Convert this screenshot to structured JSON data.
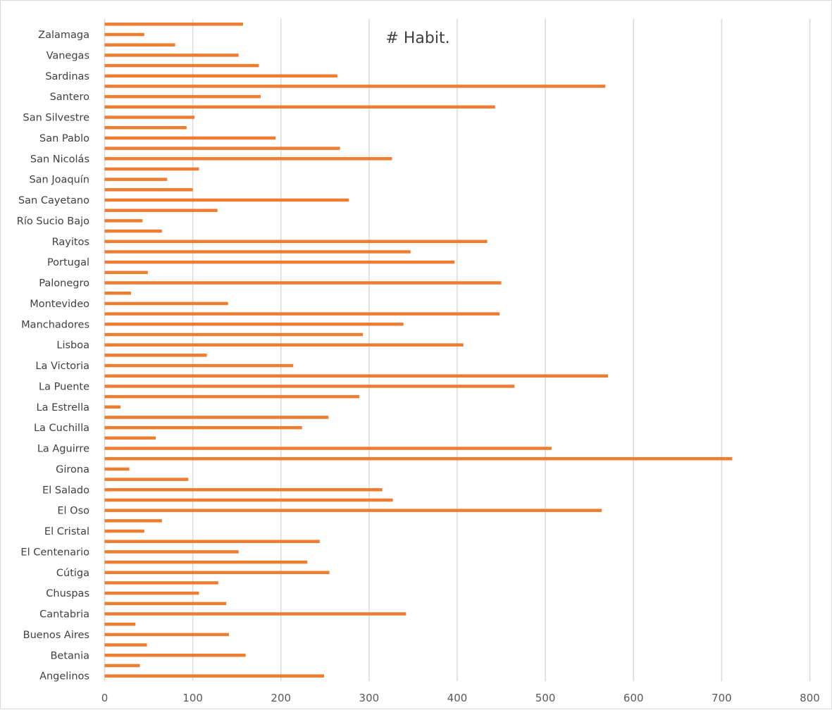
{
  "chart_data": {
    "type": "bar",
    "orientation": "horizontal",
    "title": "# Habit.",
    "xlabel": "",
    "ylabel": "",
    "xlim": [
      0,
      800
    ],
    "xticks": [
      0,
      100,
      200,
      300,
      400,
      500,
      600,
      700,
      800
    ],
    "grid": "vertical",
    "bar_color": "#ED7D31",
    "grid_color": "#d9d9d9",
    "label_color": "#404040",
    "categories_bottom_to_top": [
      "Angelinos",
      "",
      "Betania",
      "",
      "Buenos Aires",
      "",
      "Cantabria",
      "",
      "Chuspas",
      "",
      "Cútiga",
      "",
      "El Centenario",
      "",
      "El Cristal",
      "",
      "El Oso",
      "",
      "El Salado",
      "",
      "Girona",
      "",
      "La Aguirre",
      "",
      "La Cuchilla",
      "",
      "La Estrella",
      "",
      "La Puente",
      "",
      "La Victoria",
      "",
      "Lisboa",
      "",
      "Manchadores",
      "",
      "Montevideo",
      "",
      "Palonegro",
      "",
      "Portugal",
      "",
      "Rayitos",
      "",
      "Río Sucio Bajo",
      "",
      "San Cayetano",
      "",
      "San Joaquín",
      "",
      "San Nicolás",
      "",
      "San Pablo",
      "",
      "San Silvestre",
      "",
      "Santero",
      "",
      "Sardinas",
      "",
      "Vanegas",
      "",
      "Zalamaga",
      ""
    ],
    "values_bottom_to_top": [
      249,
      40,
      160,
      48,
      141,
      35,
      342,
      138,
      107,
      129,
      255,
      230,
      152,
      244,
      45,
      65,
      564,
      327,
      315,
      95,
      28,
      712,
      507,
      58,
      224,
      254,
      18,
      289,
      465,
      571,
      214,
      116,
      407,
      293,
      339,
      448,
      140,
      30,
      450,
      49,
      397,
      347,
      434,
      65,
      43,
      128,
      277,
      100,
      71,
      107,
      326,
      267,
      194,
      93,
      102,
      443,
      177,
      568,
      264,
      175,
      152,
      80,
      45,
      157
    ]
  }
}
